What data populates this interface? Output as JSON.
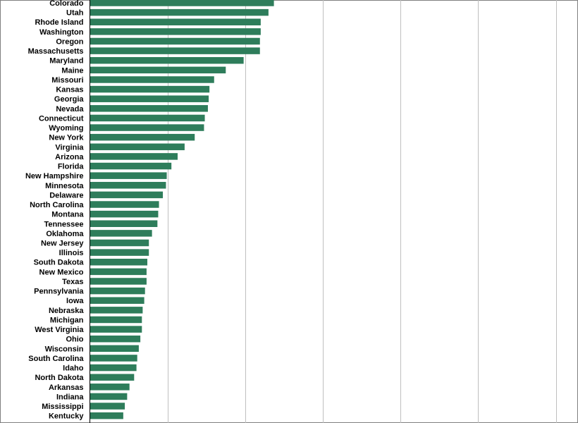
{
  "chart_data": {
    "type": "bar",
    "orientation": "horizontal",
    "title": "",
    "xlabel": "",
    "ylabel": "",
    "categories": [
      "Colorado",
      "Utah",
      "Rhode Island",
      "Washington",
      "Oregon",
      "Massachusetts",
      "Maryland",
      "Maine",
      "Missouri",
      "Kansas",
      "Georgia",
      "Nevada",
      "Connecticut",
      "Wyoming",
      "New York",
      "Virginia",
      "Arizona",
      "Florida",
      "New Hampshire",
      "Minnesota",
      "Delaware",
      "North Carolina",
      "Montana",
      "Tennessee",
      "Oklahoma",
      "New Jersey",
      "Illinois",
      "South Dakota",
      "New Mexico",
      "Texas",
      "Pennsylvania",
      "Iowa",
      "Nebraska",
      "Michigan",
      "West Virginia",
      "Ohio",
      "Wisconsin",
      "South Carolina",
      "Idaho",
      "North Dakota",
      "Arkansas",
      "Indiana",
      "Mississippi",
      "Kentucky"
    ],
    "values": [
      23.7,
      23.0,
      22.0,
      22.0,
      21.9,
      21.9,
      19.8,
      17.5,
      16.0,
      15.4,
      15.3,
      15.2,
      14.8,
      14.7,
      13.5,
      12.2,
      11.3,
      10.5,
      9.9,
      9.8,
      9.4,
      8.9,
      8.8,
      8.7,
      8.0,
      7.6,
      7.6,
      7.4,
      7.3,
      7.3,
      7.1,
      7.0,
      6.8,
      6.7,
      6.7,
      6.5,
      6.3,
      6.1,
      6.0,
      5.7,
      5.1,
      4.8,
      4.5,
      4.3
    ],
    "xlim": [
      0,
      60
    ],
    "grid": true,
    "bar_color": "#2e7d5b",
    "grid_color": "#bfbfbf"
  }
}
